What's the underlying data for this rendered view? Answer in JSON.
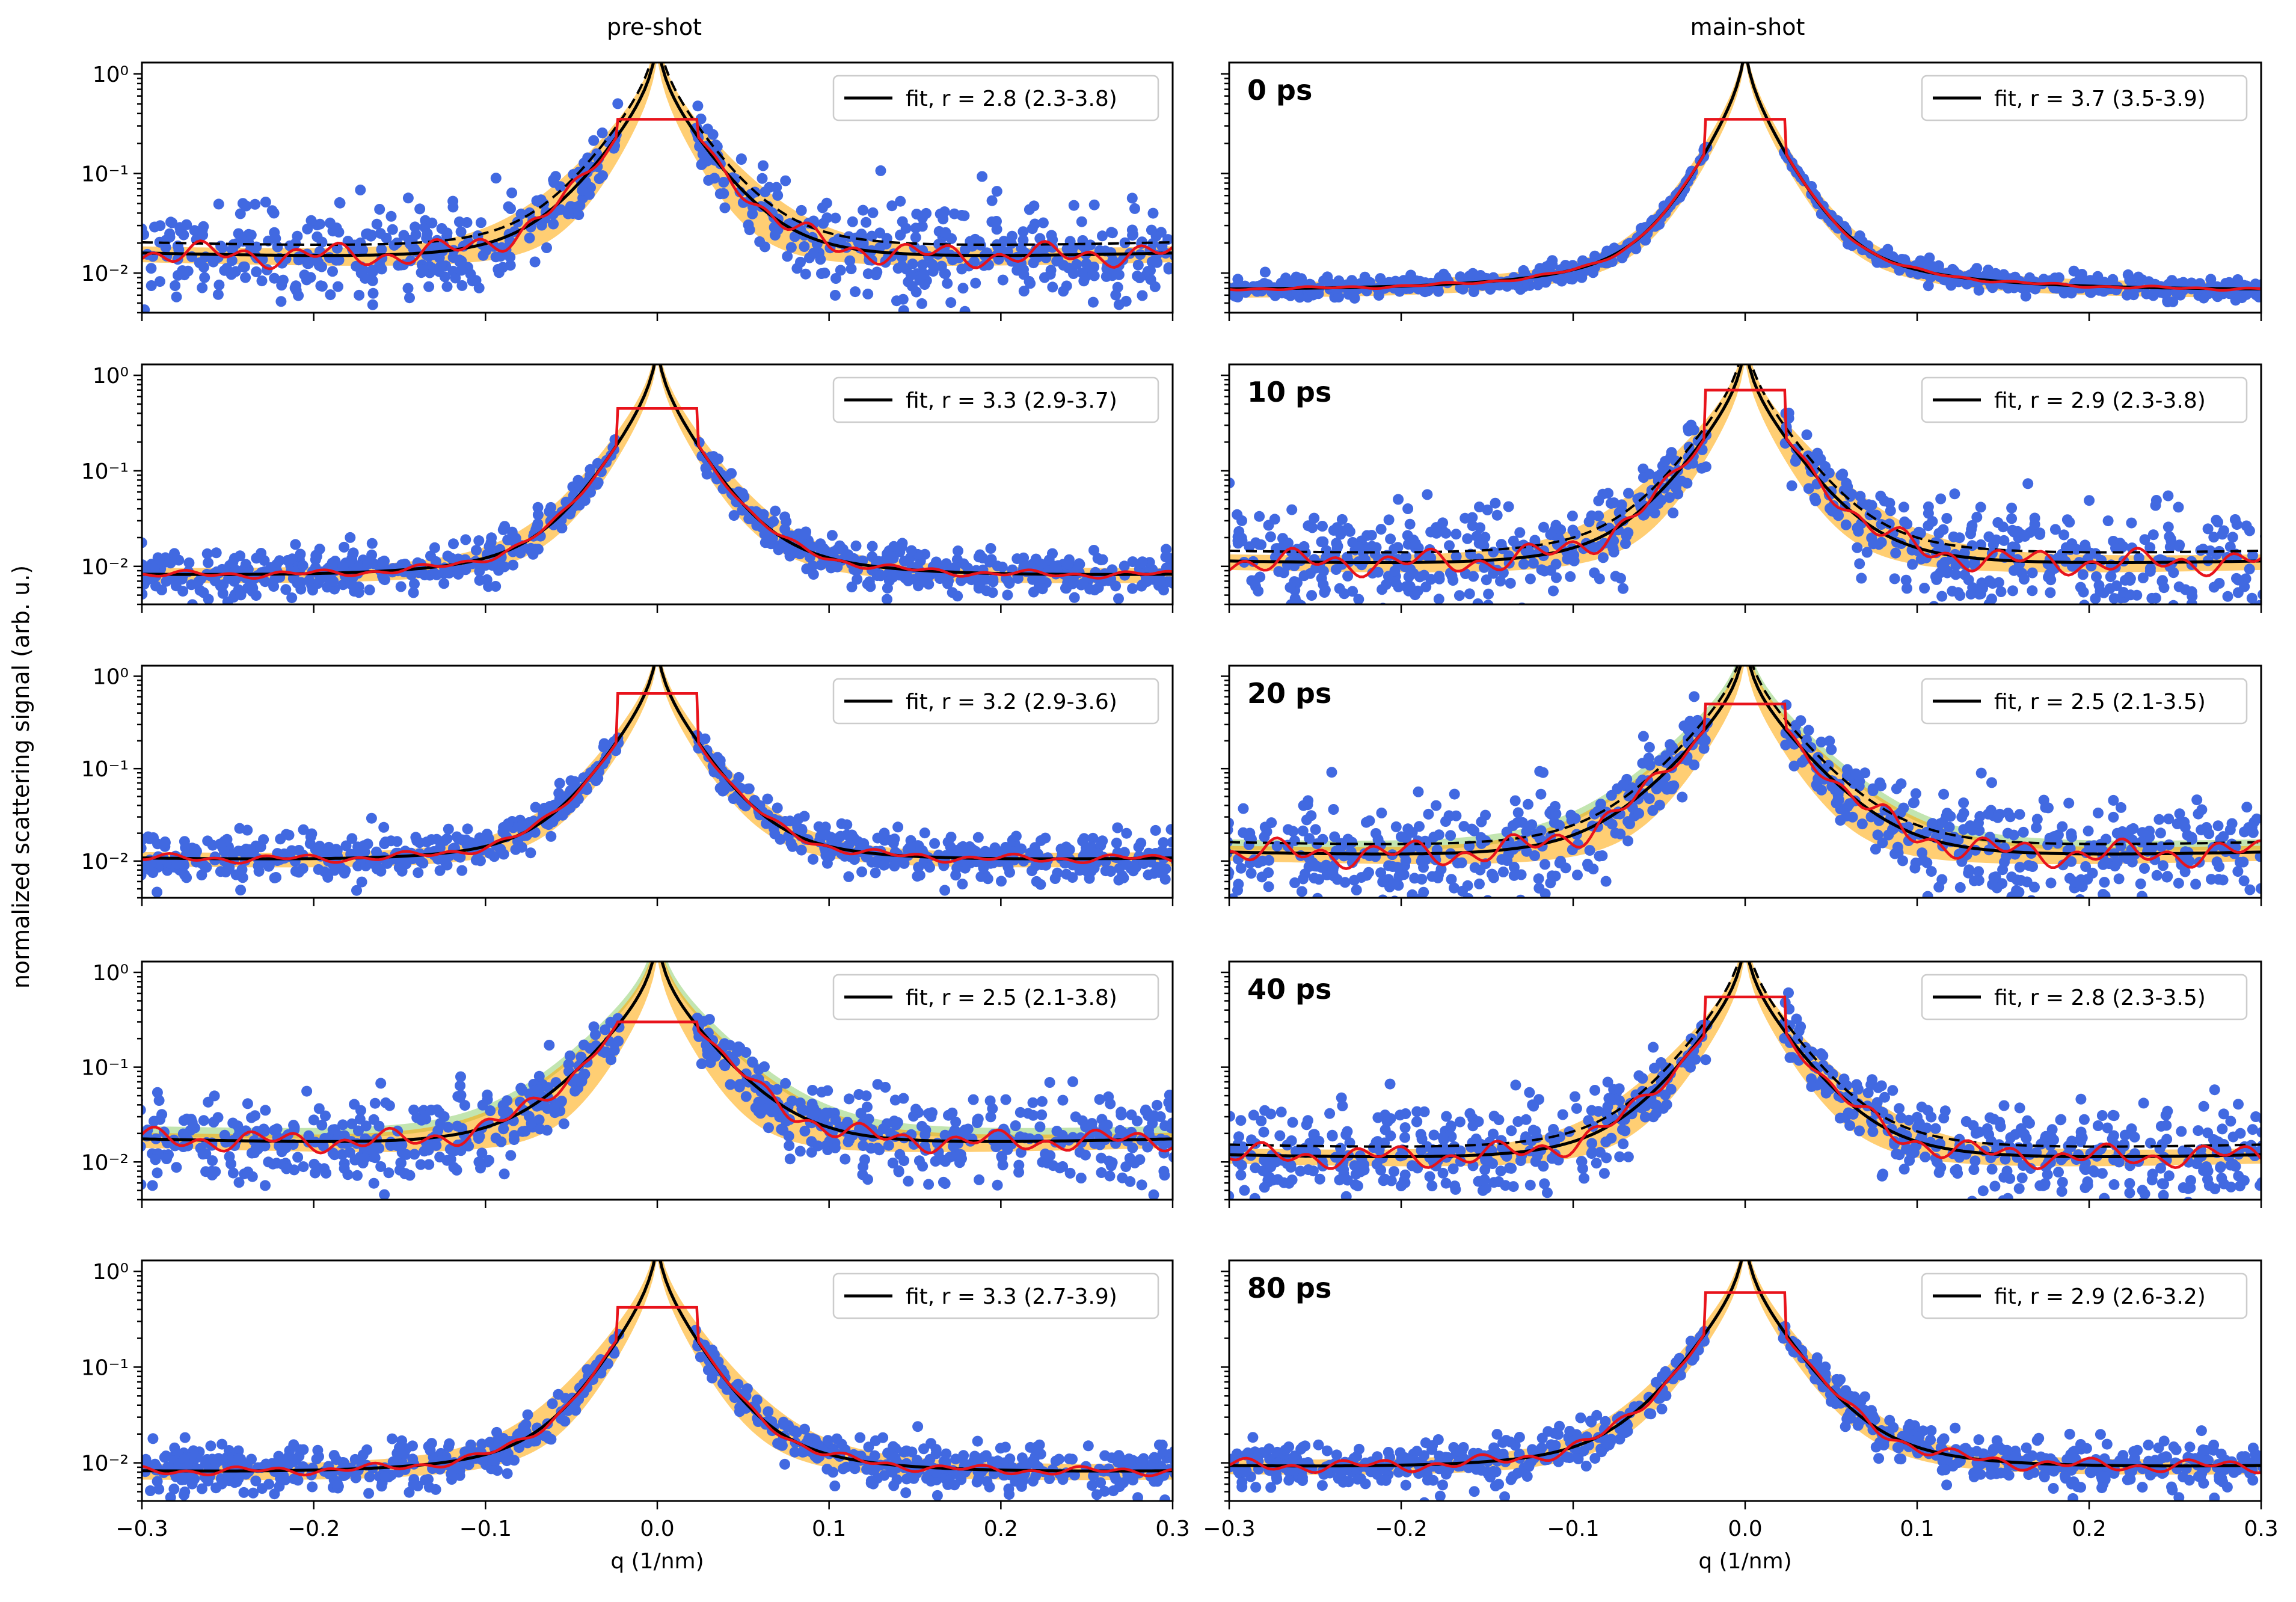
{
  "figure": {
    "ylabel": "normalized scattering signal (arb. u.)",
    "column_titles": [
      "pre-shot",
      "main-shot"
    ]
  },
  "colors": {
    "scatter": "#4169e1",
    "median": "#e8131b",
    "fit": "#000000",
    "band_orange": "#ffa500",
    "band_green": "#8fcf6f"
  },
  "chart_data": [
    {
      "type": "scatter",
      "column": "pre-shot",
      "row": 1,
      "time_label": "",
      "legend": "fit, r = 2.8 (2.3-3.8)",
      "fit_r": 2.8,
      "fit_r_range": [
        2.3,
        3.8
      ],
      "plateau": 0.35,
      "floor": 0.0095,
      "bg_scale": 0.011,
      "noise": 0.55,
      "median_wiggle": 0.32,
      "show_dashed": true,
      "show_band": true,
      "show_green": false,
      "xlabel": "",
      "xlim": [
        -0.3,
        0.3
      ],
      "ylim": [
        0.004,
        1.3
      ],
      "ytick_labels": [
        "10⁻²",
        "10⁻¹",
        "10⁰"
      ],
      "xtick_labels": []
    },
    {
      "type": "scatter",
      "column": "pre-shot",
      "row": 2,
      "time_label": "",
      "legend": "fit, r = 3.3 (2.9-3.7)",
      "fit_r": 3.3,
      "fit_r_range": [
        2.9,
        3.7
      ],
      "plateau": 0.45,
      "floor": 0.0055,
      "bg_scale": 0.004,
      "noise": 0.28,
      "median_wiggle": 0.1,
      "show_dashed": false,
      "show_band": true,
      "show_green": false,
      "xlabel": "",
      "xlim": [
        -0.3,
        0.3
      ],
      "ylim": [
        0.004,
        1.3
      ],
      "ytick_labels": [
        "10⁻²",
        "10⁻¹",
        "10⁰"
      ],
      "xtick_labels": []
    },
    {
      "type": "scatter",
      "column": "pre-shot",
      "row": 3,
      "time_label": "",
      "legend": "fit, r = 3.2 (2.9-3.6)",
      "fit_r": 3.2,
      "fit_r_range": [
        2.9,
        3.6
      ],
      "plateau": 0.65,
      "floor": 0.007,
      "bg_scale": 0.006,
      "noise": 0.32,
      "median_wiggle": 0.12,
      "show_dashed": false,
      "show_band": true,
      "show_green": false,
      "xlabel": "",
      "xlim": [
        -0.3,
        0.3
      ],
      "ylim": [
        0.004,
        1.3
      ],
      "ytick_labels": [
        "10⁻²",
        "10⁻¹",
        "10⁰"
      ],
      "xtick_labels": []
    },
    {
      "type": "scatter",
      "column": "pre-shot",
      "row": 4,
      "time_label": "",
      "legend": "fit, r = 2.5 (2.1-3.8)",
      "fit_r": 2.5,
      "fit_r_range": [
        2.1,
        3.8
      ],
      "plateau": 0.3,
      "floor": 0.01,
      "bg_scale": 0.013,
      "noise": 0.55,
      "median_wiggle": 0.3,
      "show_dashed": false,
      "show_band": true,
      "show_green": true,
      "xlabel": "",
      "xlim": [
        -0.3,
        0.3
      ],
      "ylim": [
        0.004,
        1.3
      ],
      "ytick_labels": [
        "10⁻²",
        "10⁻¹",
        "10⁰"
      ],
      "xtick_labels": []
    },
    {
      "type": "scatter",
      "column": "pre-shot",
      "row": 5,
      "time_label": "",
      "legend": "fit, r = 3.3 (2.7-3.9)",
      "fit_r": 3.3,
      "fit_r_range": [
        2.7,
        3.9
      ],
      "plateau": 0.42,
      "floor": 0.0055,
      "bg_scale": 0.004,
      "noise": 0.3,
      "median_wiggle": 0.12,
      "show_dashed": false,
      "show_band": true,
      "show_green": false,
      "xlabel": "q (1/nm)",
      "xlim": [
        -0.3,
        0.3
      ],
      "ylim": [
        0.004,
        1.3
      ],
      "ytick_labels": [
        "10⁻²",
        "10⁻¹",
        "10⁰"
      ],
      "xtick_labels": [
        "−0.3",
        "−0.2",
        "−0.1",
        "0.0",
        "0.1",
        "0.2",
        "0.3"
      ]
    },
    {
      "type": "scatter",
      "column": "main-shot",
      "row": 1,
      "time_label": "0 ps",
      "legend": "fit, r = 3.7 (3.5-3.9)",
      "fit_r": 3.7,
      "fit_r_range": [
        3.5,
        3.9
      ],
      "plateau": 0.35,
      "floor": 0.0055,
      "bg_scale": 0.0015,
      "noise": 0.12,
      "median_wiggle": 0.04,
      "show_dashed": false,
      "show_band": true,
      "show_green": false,
      "xlabel": "",
      "xlim": [
        -0.3,
        0.3
      ],
      "ylim": [
        0.004,
        1.3
      ],
      "ytick_labels": [],
      "xtick_labels": []
    },
    {
      "type": "scatter",
      "column": "main-shot",
      "row": 2,
      "time_label": "10 ps",
      "legend": "fit, r = 2.9 (2.3-3.8)",
      "fit_r": 2.9,
      "fit_r_range": [
        2.3,
        3.8
      ],
      "plateau": 0.7,
      "floor": 0.0065,
      "bg_scale": 0.008,
      "noise": 0.65,
      "median_wiggle": 0.35,
      "show_dashed": true,
      "show_band": true,
      "show_green": false,
      "xlabel": "",
      "xlim": [
        -0.3,
        0.3
      ],
      "ylim": [
        0.004,
        1.3
      ],
      "ytick_labels": [],
      "xtick_labels": []
    },
    {
      "type": "scatter",
      "column": "main-shot",
      "row": 3,
      "time_label": "20 ps",
      "legend": "fit, r = 2.5 (2.1-3.5)",
      "fit_r": 2.5,
      "fit_r_range": [
        2.1,
        3.5
      ],
      "plateau": 0.5,
      "floor": 0.0065,
      "bg_scale": 0.01,
      "noise": 0.7,
      "median_wiggle": 0.38,
      "show_dashed": true,
      "show_band": true,
      "show_green": true,
      "xlabel": "",
      "xlim": [
        -0.3,
        0.3
      ],
      "ylim": [
        0.004,
        1.3
      ],
      "ytick_labels": [],
      "xtick_labels": []
    },
    {
      "type": "scatter",
      "column": "main-shot",
      "row": 4,
      "time_label": "40 ps",
      "legend": "fit, r = 2.8 (2.3-3.5)",
      "fit_r": 2.8,
      "fit_r_range": [
        2.3,
        3.5
      ],
      "plateau": 0.55,
      "floor": 0.0065,
      "bg_scale": 0.009,
      "noise": 0.62,
      "median_wiggle": 0.32,
      "show_dashed": true,
      "show_band": true,
      "show_green": false,
      "xlabel": "",
      "xlim": [
        -0.3,
        0.3
      ],
      "ylim": [
        0.004,
        1.3
      ],
      "ytick_labels": [],
      "xtick_labels": []
    },
    {
      "type": "scatter",
      "column": "main-shot",
      "row": 5,
      "time_label": "80 ps",
      "legend": "fit, r = 2.9 (2.6-3.2)",
      "fit_r": 2.9,
      "fit_r_range": [
        2.6,
        3.2
      ],
      "plateau": 0.6,
      "floor": 0.006,
      "bg_scale": 0.005,
      "noise": 0.28,
      "median_wiggle": 0.18,
      "show_dashed": false,
      "show_band": true,
      "show_green": false,
      "xlabel": "q (1/nm)",
      "xlim": [
        -0.3,
        0.3
      ],
      "ylim": [
        0.004,
        1.3
      ],
      "ytick_labels": [],
      "xtick_labels": [
        "−0.3",
        "−0.2",
        "−0.1",
        "0.0",
        "0.1",
        "0.2",
        "0.3"
      ]
    }
  ]
}
